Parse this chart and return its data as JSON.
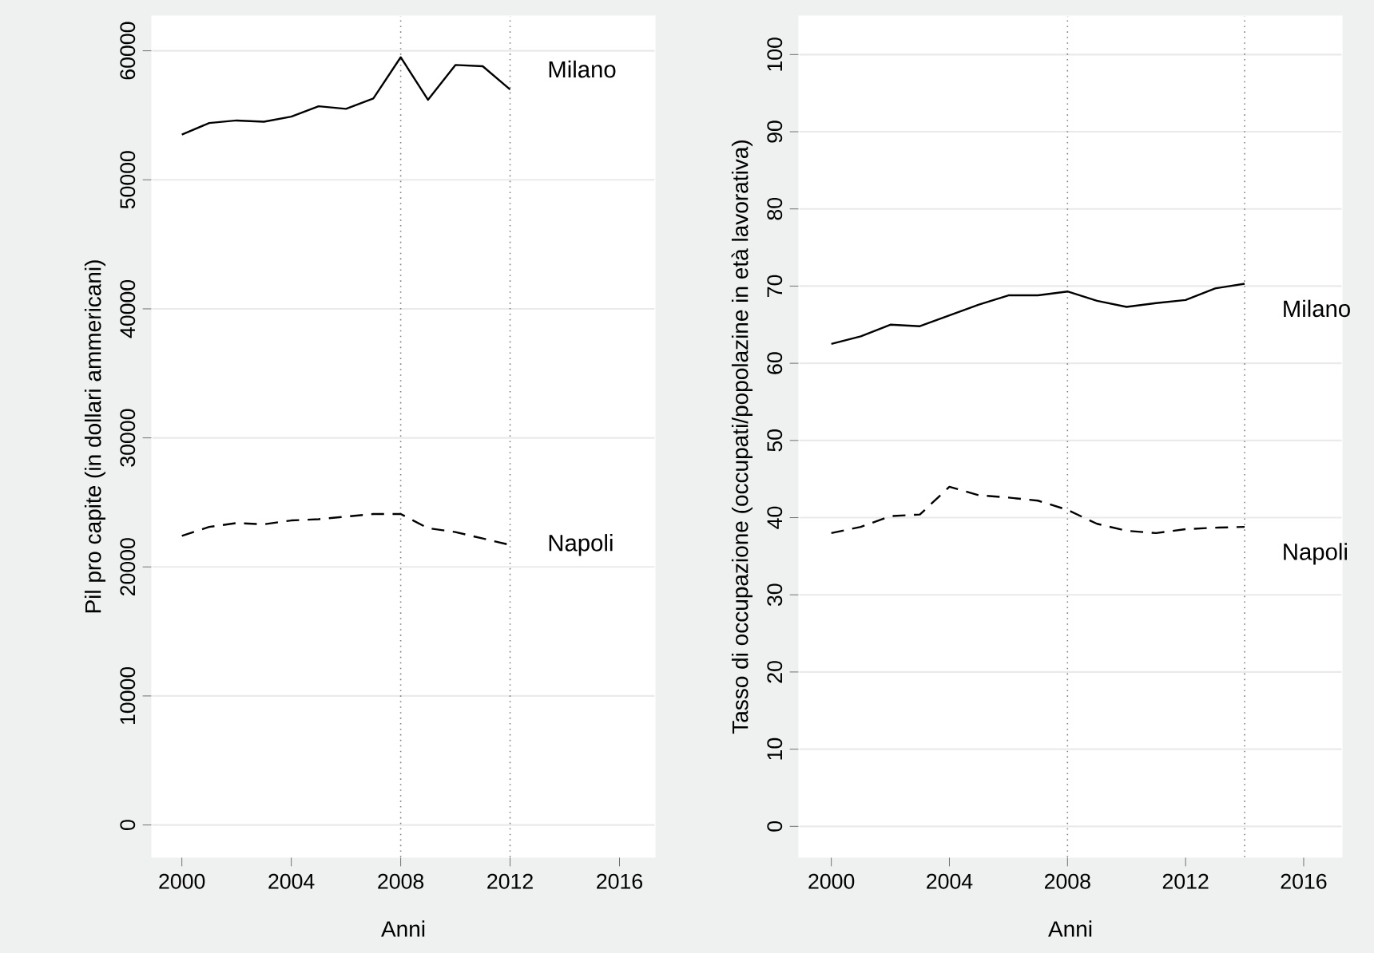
{
  "chart_data": [
    {
      "type": "line",
      "xlabel": "Anni",
      "ylabel": "Pil pro capite (in dollari ammericani)",
      "xlim": [
        1998.9,
        2017.3
      ],
      "ylim": [
        -2500,
        62700
      ],
      "xticks": [
        2000,
        2004,
        2008,
        2012,
        2016
      ],
      "yticks": [
        0,
        10000,
        20000,
        30000,
        40000,
        50000,
        60000
      ],
      "grid": "y",
      "x": [
        2000,
        2001,
        2002,
        2003,
        2004,
        2005,
        2006,
        2007,
        2008,
        2009,
        2010,
        2011,
        2012
      ],
      "series": [
        {
          "name": "Milano",
          "color": "#000000",
          "line_style": "solid",
          "values": [
            53500,
            54400,
            54600,
            54500,
            54900,
            55700,
            55500,
            56300,
            59500,
            56200,
            58900,
            58800,
            57000
          ]
        },
        {
          "name": "Napoli",
          "color": "#000000",
          "line_style": "dashed",
          "values": [
            22400,
            23100,
            23400,
            23300,
            23600,
            23700,
            23900,
            24100,
            24100,
            23000,
            22700,
            22200,
            21700
          ]
        }
      ],
      "ref_lines": [
        {
          "axis": "x",
          "value": 2008,
          "color": "#808080",
          "line_style": "dotted"
        },
        {
          "axis": "x",
          "value": 2012,
          "color": "#808080",
          "line_style": "dotted"
        }
      ]
    },
    {
      "type": "line",
      "xlabel": "Anni",
      "ylabel": "Tasso di occupazione (occupati/popolazine in età lavorativa)",
      "xlim": [
        1998.9,
        2017.3
      ],
      "ylim": [
        -4,
        105
      ],
      "xticks": [
        2000,
        2004,
        2008,
        2012,
        2016
      ],
      "yticks": [
        0,
        10,
        20,
        30,
        40,
        50,
        60,
        70,
        80,
        90,
        100
      ],
      "grid": "y",
      "x": [
        2000,
        2001,
        2002,
        2003,
        2004,
        2005,
        2006,
        2007,
        2008,
        2009,
        2010,
        2011,
        2012,
        2013,
        2014
      ],
      "series": [
        {
          "name": "Milano",
          "color": "#000000",
          "line_style": "solid",
          "values": [
            62.5,
            63.5,
            65,
            64.8,
            66.2,
            67.6,
            68.8,
            68.8,
            69.3,
            68.1,
            67.3,
            67.8,
            68.2,
            69.7,
            70.3
          ]
        },
        {
          "name": "Napoli",
          "color": "#000000",
          "line_style": "dashed",
          "values": [
            38,
            38.8,
            40.2,
            40.4,
            44,
            42.9,
            42.6,
            42.2,
            41,
            39.2,
            38.3,
            38,
            38.5,
            38.7,
            38.8
          ]
        }
      ],
      "ref_lines": [
        {
          "axis": "x",
          "value": 2008,
          "color": "#808080",
          "line_style": "dotted"
        },
        {
          "axis": "x",
          "value": 2014,
          "color": "#808080",
          "line_style": "dotted"
        }
      ]
    }
  ]
}
